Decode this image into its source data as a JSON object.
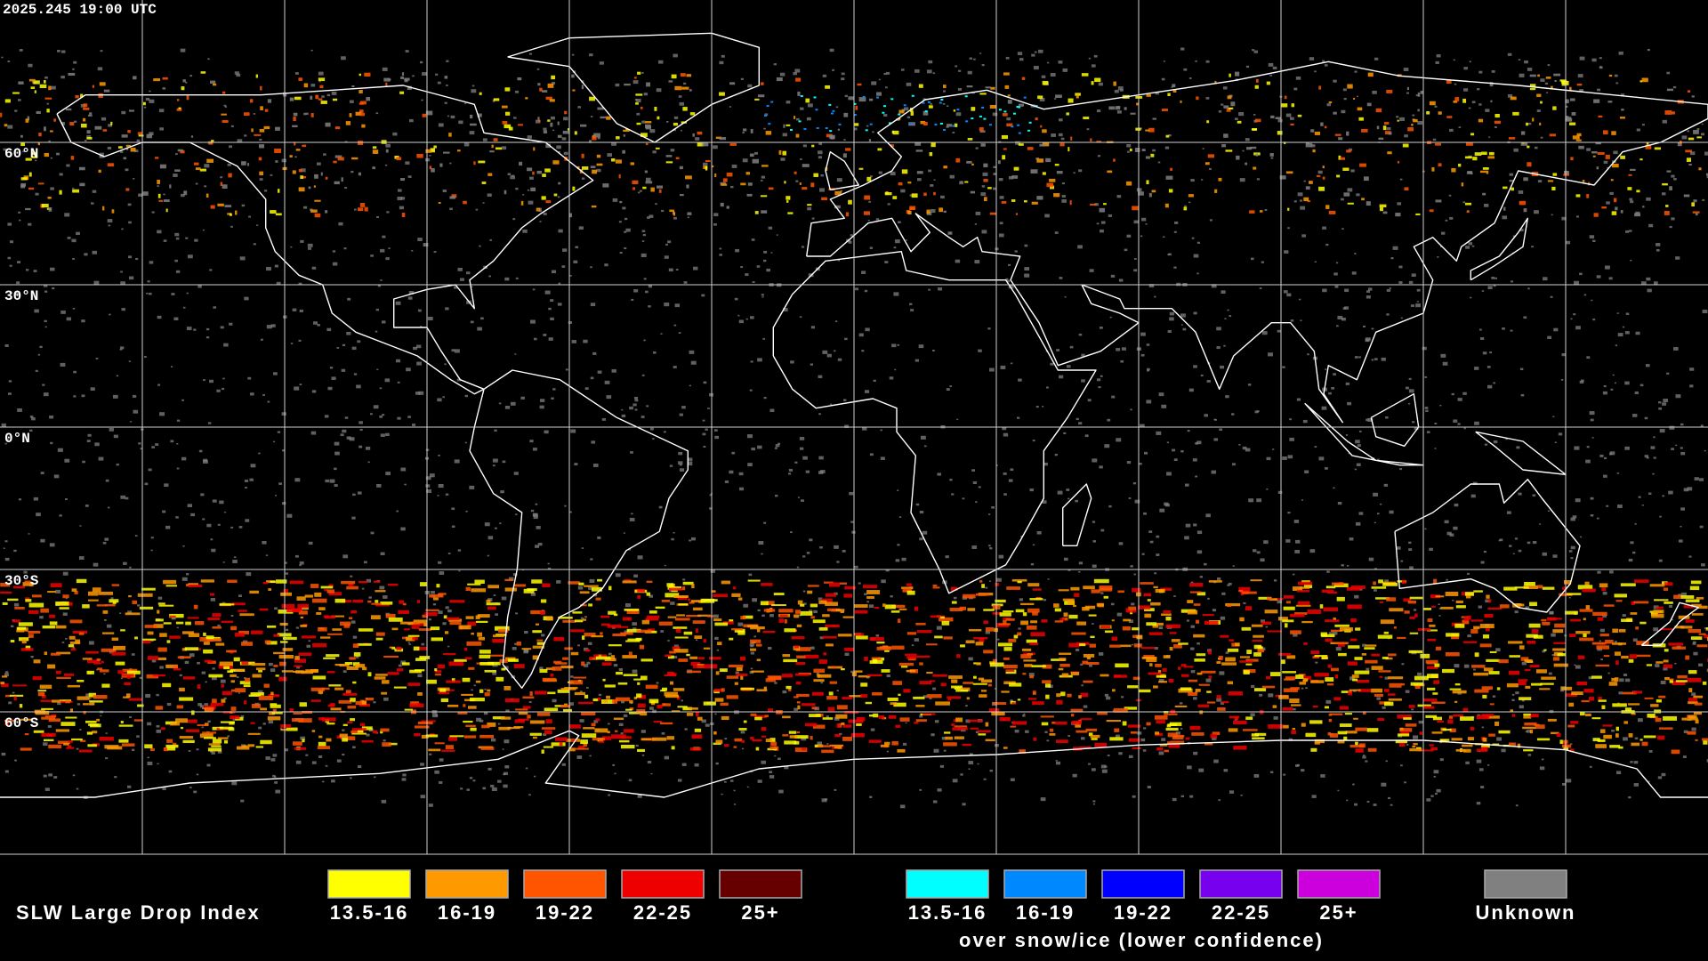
{
  "timestamp": "2025.245 19:00 UTC",
  "map": {
    "latitude_labels": [
      "60°N",
      "30°N",
      "0°N",
      "30°S",
      "60°S"
    ]
  },
  "legend": {
    "title": "SLW Large Drop Index",
    "categories": [
      {
        "label": "13.5-16",
        "color": "#ffff00"
      },
      {
        "label": "16-19",
        "color": "#ff9900"
      },
      {
        "label": "19-22",
        "color": "#ff5500"
      },
      {
        "label": "22-25",
        "color": "#ee0000"
      },
      {
        "label": "25+",
        "color": "#660000"
      }
    ],
    "snow_ice": {
      "items": [
        {
          "label": "13.5-16",
          "color": "#00ffff"
        },
        {
          "label": "16-19",
          "color": "#0088ff"
        },
        {
          "label": "19-22",
          "color": "#0000ff"
        },
        {
          "label": "22-25",
          "color": "#7700ee"
        },
        {
          "label": "25+",
          "color": "#cc00dd"
        }
      ],
      "caption": "over snow/ice (lower confidence)"
    },
    "unknown": {
      "label": "Unknown",
      "color": "#808080"
    }
  }
}
